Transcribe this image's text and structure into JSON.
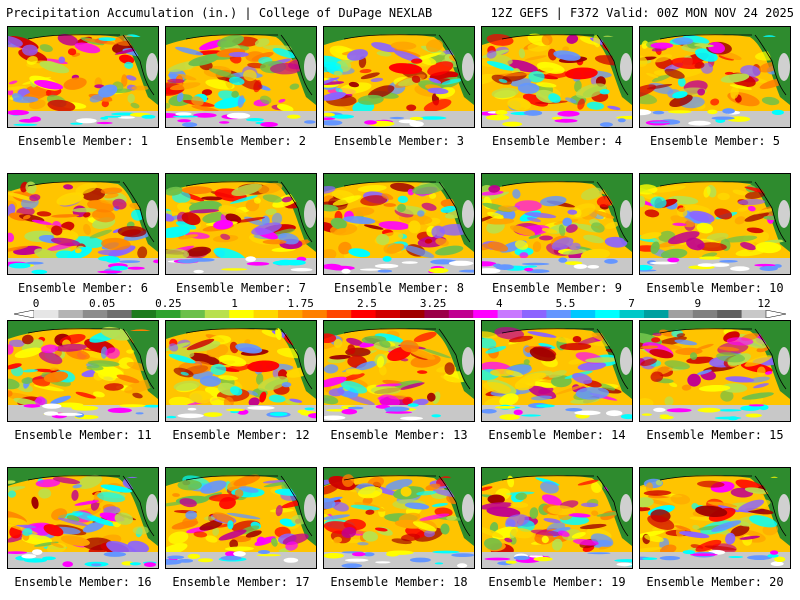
{
  "header": {
    "title": "Precipitation Accumulation (in.) | College of DuPage NEXLAB",
    "run_info": "12Z GEFS | F372 Valid: 00Z MON NOV 24 2025"
  },
  "colorbar": {
    "labels": [
      "0",
      "0.05",
      "0.25",
      "1",
      "1.75",
      "2.5",
      "3.25",
      "4",
      "5.5",
      "7",
      "9",
      "12"
    ],
    "colors": [
      "#e6e6e6",
      "#b4b4b4",
      "#8c8c8c",
      "#6e6e6e",
      "#1e7b1e",
      "#2ea22e",
      "#6cc04a",
      "#b9e04d",
      "#ffff00",
      "#ffd700",
      "#ffa500",
      "#ff7f00",
      "#ff4500",
      "#ff0000",
      "#d00000",
      "#a00000",
      "#9b0047",
      "#c00090",
      "#ff00ff",
      "#c878ff",
      "#8c64ff",
      "#6496ff",
      "#00c8ff",
      "#00ffff",
      "#00c8c8",
      "#00a0a0",
      "#a0a0a0",
      "#808080",
      "#606060",
      "#c8c8c8"
    ],
    "land_color": "#2e8b2e",
    "heavy_colors": [
      "#ff0000",
      "#d00000",
      "#a00000",
      "#c00090",
      "#ff00ff",
      "#8c64ff",
      "#6496ff",
      "#00ffff"
    ],
    "light_colors": [
      "#ffff00",
      "#ffd700",
      "#ffa500",
      "#ff7f00",
      "#b9e04d",
      "#6cc04a"
    ]
  },
  "members": [
    {
      "label": "Ensemble Member: 1"
    },
    {
      "label": "Ensemble Member: 2"
    },
    {
      "label": "Ensemble Member: 3"
    },
    {
      "label": "Ensemble Member: 4"
    },
    {
      "label": "Ensemble Member: 5"
    },
    {
      "label": "Ensemble Member: 6"
    },
    {
      "label": "Ensemble Member: 7"
    },
    {
      "label": "Ensemble Member: 8"
    },
    {
      "label": "Ensemble Member: 9"
    },
    {
      "label": "Ensemble Member: 10"
    },
    {
      "label": "Ensemble Member: 11"
    },
    {
      "label": "Ensemble Member: 12"
    },
    {
      "label": "Ensemble Member: 13"
    },
    {
      "label": "Ensemble Member: 14"
    },
    {
      "label": "Ensemble Member: 15"
    },
    {
      "label": "Ensemble Member: 16"
    },
    {
      "label": "Ensemble Member: 17"
    },
    {
      "label": "Ensemble Member: 18"
    },
    {
      "label": "Ensemble Member: 19"
    },
    {
      "label": "Ensemble Member: 20"
    }
  ]
}
